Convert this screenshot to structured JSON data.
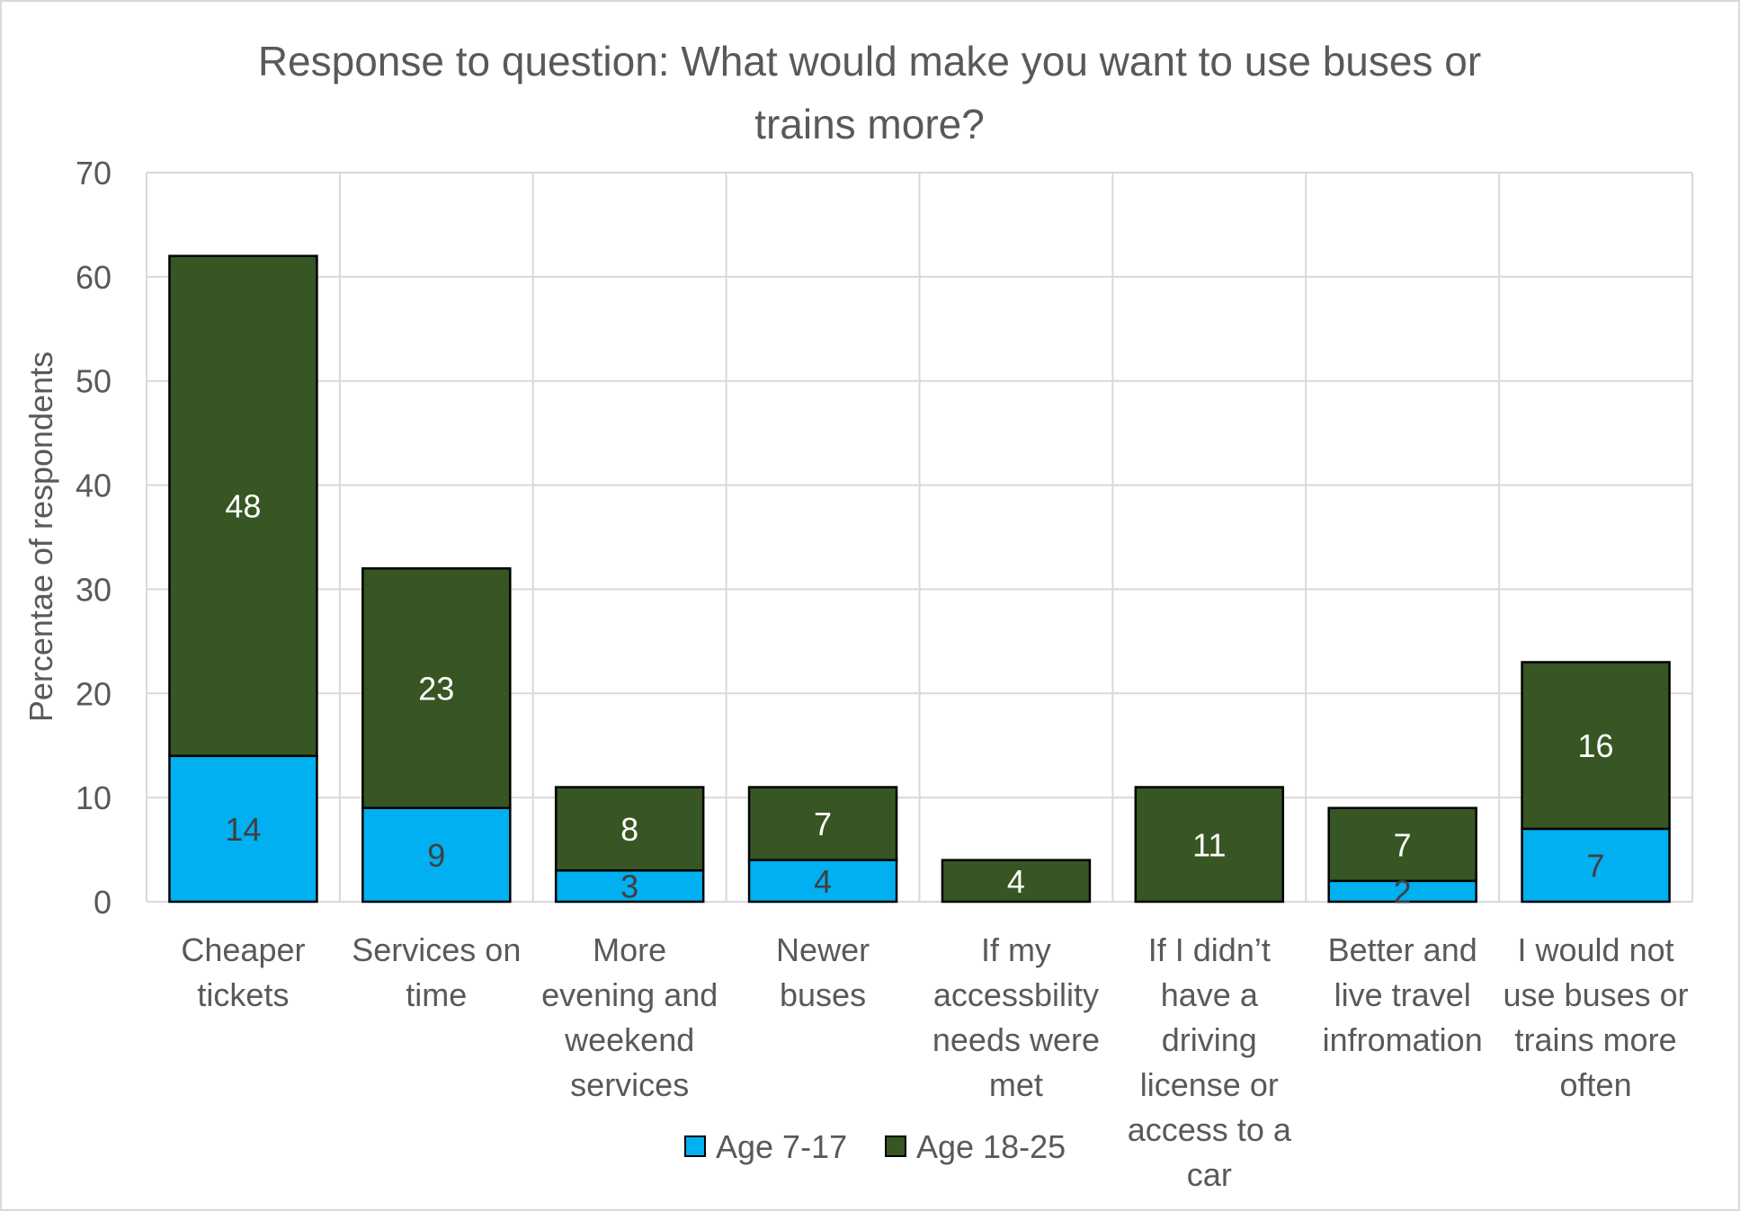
{
  "chart_data": {
    "type": "bar",
    "stacked": true,
    "title": "Response to question: What would make you want to use buses or trains more?",
    "title_lines": [
      "Response to question: What would make you want to use buses or",
      "trains more?"
    ],
    "xlabel": "",
    "ylabel": "Percentae of respondents",
    "ylim": [
      0,
      70
    ],
    "yticks": [
      0,
      10,
      20,
      30,
      40,
      50,
      60,
      70
    ],
    "grid": true,
    "legend_position": "bottom",
    "categories": [
      "Cheaper tickets",
      "Services on time",
      "More evening and weekend services",
      "Newer buses",
      "If my accessbility needs were met",
      "If I didn’t have a driving license or access to a car",
      "Better and live travel infromation",
      "I would not use buses or trains more often"
    ],
    "category_label_lines": [
      [
        "Cheaper",
        "tickets"
      ],
      [
        "Services on",
        "time"
      ],
      [
        "More",
        "evening and",
        "weekend",
        "services"
      ],
      [
        "Newer",
        "buses"
      ],
      [
        "If my",
        "accessbility",
        "needs were",
        "met"
      ],
      [
        "If I didn’t",
        "have a",
        "driving",
        "license or",
        "access to a",
        "car"
      ],
      [
        "Better and",
        "live travel",
        "infromation"
      ],
      [
        "I would not",
        "use buses or",
        "trains more",
        "often"
      ]
    ],
    "series": [
      {
        "name": "Age 7-17",
        "color": "#00b0f0",
        "label_color": "#404040",
        "values": [
          14,
          9,
          3,
          4,
          0,
          0,
          2,
          7
        ]
      },
      {
        "name": "Age 18-25",
        "color": "#375623",
        "label_color": "#ffffff",
        "values": [
          48,
          23,
          8,
          7,
          4,
          11,
          7,
          16
        ]
      }
    ],
    "data_labels": [
      [
        "14",
        "9",
        "3",
        "4",
        null,
        null,
        "2",
        "7"
      ],
      [
        "48",
        "23",
        "8",
        "7",
        "4",
        "11",
        "7",
        "16"
      ]
    ]
  }
}
